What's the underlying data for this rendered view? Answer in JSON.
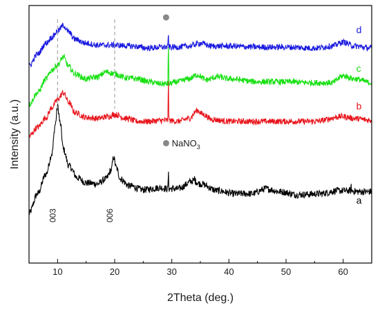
{
  "chart_data": {
    "type": "line",
    "xlabel": "2Theta (deg.)",
    "ylabel": "Intensity (a.u.)",
    "xlim": [
      5,
      65
    ],
    "xticks": [
      10,
      20,
      30,
      40,
      50,
      60
    ],
    "y_ticks_shown": false,
    "grid": false,
    "series": [
      {
        "name": "a",
        "color": "#000000",
        "noise": 0.35,
        "points": [
          [
            5,
            -1.0
          ],
          [
            6.5,
            1.0
          ],
          [
            8,
            3.0
          ],
          [
            9,
            5.0
          ],
          [
            9.6,
            8.0
          ],
          [
            10,
            9.8
          ],
          [
            10.5,
            8.0
          ],
          [
            11,
            5.5
          ],
          [
            12,
            3.8
          ],
          [
            13.5,
            2.6
          ],
          [
            15,
            2.1
          ],
          [
            17,
            2.0
          ],
          [
            18.5,
            2.5
          ],
          [
            19.4,
            3.4
          ],
          [
            19.8,
            4.7
          ],
          [
            20.3,
            3.6
          ],
          [
            21,
            2.5
          ],
          [
            22.5,
            1.8
          ],
          [
            25,
            1.4
          ],
          [
            28,
            1.6
          ],
          [
            29.4,
            1.5
          ],
          [
            31,
            1.5
          ],
          [
            33.8,
            2.3
          ],
          [
            35,
            2.0
          ],
          [
            38,
            1.3
          ],
          [
            41,
            1.0
          ],
          [
            44,
            1.0
          ],
          [
            46.5,
            1.5
          ],
          [
            49,
            1.2
          ],
          [
            52,
            0.9
          ],
          [
            56,
            1.0
          ],
          [
            59,
            1.3
          ],
          [
            61,
            1.3
          ],
          [
            63,
            1.2
          ],
          [
            65,
            1.2
          ]
        ],
        "spikes": [
          [
            29.4,
            1.8
          ],
          [
            34.0,
            0.4
          ],
          [
            61.4,
            0.4
          ]
        ]
      },
      {
        "name": "b",
        "color": "#e8141c",
        "noise": 0.3,
        "points": [
          [
            5,
            6.8
          ],
          [
            6.5,
            7.7
          ],
          [
            8,
            8.7
          ],
          [
            9,
            9.7
          ],
          [
            10,
            10.5
          ],
          [
            11,
            11.2
          ],
          [
            12,
            10.2
          ],
          [
            13,
            9.2
          ],
          [
            15,
            8.7
          ],
          [
            17,
            8.6
          ],
          [
            19,
            8.8
          ],
          [
            20,
            9.0
          ],
          [
            22,
            8.6
          ],
          [
            24,
            8.3
          ],
          [
            26,
            8.3
          ],
          [
            28,
            8.4
          ],
          [
            29.4,
            8.4
          ],
          [
            31,
            8.3
          ],
          [
            33,
            8.6
          ],
          [
            34.5,
            9.4
          ],
          [
            35.5,
            9.0
          ],
          [
            37,
            8.5
          ],
          [
            40,
            8.3
          ],
          [
            45,
            8.3
          ],
          [
            50,
            8.3
          ],
          [
            55,
            8.3
          ],
          [
            60,
            8.8
          ],
          [
            62,
            8.6
          ],
          [
            65,
            8.4
          ]
        ],
        "spikes": [
          [
            29.4,
            4.8
          ]
        ]
      },
      {
        "name": "c",
        "color": "#17e012",
        "noise": 0.3,
        "points": [
          [
            5,
            10.0
          ],
          [
            6.5,
            11.2
          ],
          [
            8,
            12.6
          ],
          [
            9,
            13.5
          ],
          [
            10,
            14.0
          ],
          [
            11,
            14.8
          ],
          [
            12,
            13.8
          ],
          [
            13,
            13.1
          ],
          [
            15,
            12.6
          ],
          [
            17,
            12.8
          ],
          [
            18.5,
            13.3
          ],
          [
            20,
            13.1
          ],
          [
            22,
            12.7
          ],
          [
            24,
            12.6
          ],
          [
            26,
            12.3
          ],
          [
            28,
            12.1
          ],
          [
            29.4,
            12.1
          ],
          [
            31,
            12.3
          ],
          [
            33,
            12.6
          ],
          [
            34.5,
            13.0
          ],
          [
            36,
            12.5
          ],
          [
            38,
            12.8
          ],
          [
            40,
            12.6
          ],
          [
            45,
            12.3
          ],
          [
            50,
            12.3
          ],
          [
            55,
            12.2
          ],
          [
            58,
            12.2
          ],
          [
            60,
            12.9
          ],
          [
            62,
            12.6
          ],
          [
            65,
            12.2
          ]
        ],
        "spikes": [
          [
            29.4,
            4.5
          ]
        ]
      },
      {
        "name": "d",
        "color": "#1a1ae0",
        "noise": 0.3,
        "points": [
          [
            5,
            13.9
          ],
          [
            6.5,
            15.1
          ],
          [
            8,
            16.2
          ],
          [
            9,
            16.8
          ],
          [
            10,
            17.4
          ],
          [
            11,
            18.0
          ],
          [
            12,
            17.3
          ],
          [
            13,
            16.6
          ],
          [
            15,
            16.2
          ],
          [
            17,
            16.0
          ],
          [
            20,
            16.0
          ],
          [
            23,
            15.9
          ],
          [
            26,
            15.7
          ],
          [
            28,
            15.8
          ],
          [
            29.4,
            15.8
          ],
          [
            31,
            15.8
          ],
          [
            33,
            15.9
          ],
          [
            35,
            16.2
          ],
          [
            37,
            15.9
          ],
          [
            40,
            15.9
          ],
          [
            45,
            15.8
          ],
          [
            50,
            15.8
          ],
          [
            55,
            15.7
          ],
          [
            58,
            15.9
          ],
          [
            60,
            16.3
          ],
          [
            62,
            15.9
          ],
          [
            65,
            15.7
          ]
        ],
        "spikes": [
          [
            29.4,
            1.5
          ]
        ]
      }
    ],
    "series_labels": [
      {
        "text": "a",
        "color": "#000000"
      },
      {
        "text": "b",
        "color": "#e8141c"
      },
      {
        "text": "c",
        "color": "#17e012"
      },
      {
        "text": "d",
        "color": "#1a1ae0"
      }
    ],
    "annotations": {
      "peak_labels": [
        {
          "text": "003",
          "x": 10
        },
        {
          "text": "006",
          "x": 20
        }
      ],
      "dashed_lines_x": [
        10,
        20
      ],
      "legend_marker_color": "#888888",
      "legend_text": "NaNO",
      "legend_subscript": "3"
    }
  }
}
